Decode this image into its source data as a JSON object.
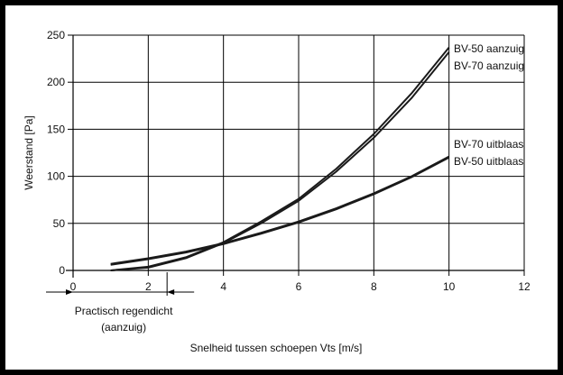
{
  "chart_data": {
    "type": "line",
    "title": "",
    "xlabel": "Snelheid tussen schoepen Vts [m/s]",
    "ylabel": "Weerstand [Pa]",
    "xlim": [
      0,
      12
    ],
    "ylim": [
      0,
      250
    ],
    "x_ticks": [
      0,
      2,
      4,
      6,
      8,
      10,
      12
    ],
    "y_ticks": [
      0,
      50,
      100,
      150,
      200,
      250
    ],
    "grid": true,
    "line_color": "#1a1a1a",
    "series": [
      {
        "name": "BV-50 aanzuig",
        "x": [
          1,
          2,
          3,
          4,
          5,
          6,
          7,
          8,
          9,
          10
        ],
        "y": [
          0,
          4,
          14,
          30,
          52,
          76,
          108,
          145,
          188,
          237
        ]
      },
      {
        "name": "BV-70 aanzuig",
        "x": [
          1,
          2,
          3,
          4,
          5,
          6,
          7,
          8,
          9,
          10
        ],
        "y": [
          0,
          3,
          13,
          29,
          50,
          74,
          105,
          141,
          183,
          232
        ]
      },
      {
        "name": "BV-70 uitblaas",
        "x": [
          1,
          2,
          3,
          4,
          5,
          6,
          7,
          8,
          9,
          10
        ],
        "y": [
          7,
          13,
          20,
          29,
          40,
          52,
          66,
          82,
          100,
          121
        ]
      },
      {
        "name": "BV-50 uitblaas",
        "x": [
          1,
          2,
          3,
          4,
          5,
          6,
          7,
          8,
          9,
          10
        ],
        "y": [
          6,
          12,
          19,
          28,
          39,
          51,
          65,
          81,
          99,
          120
        ]
      }
    ],
    "annotations": [
      {
        "text": "Practisch regendicht",
        "x_range": [
          0,
          2.5
        ]
      },
      {
        "text": "(aanzuig)",
        "x_range": [
          0,
          2.5
        ]
      }
    ]
  }
}
